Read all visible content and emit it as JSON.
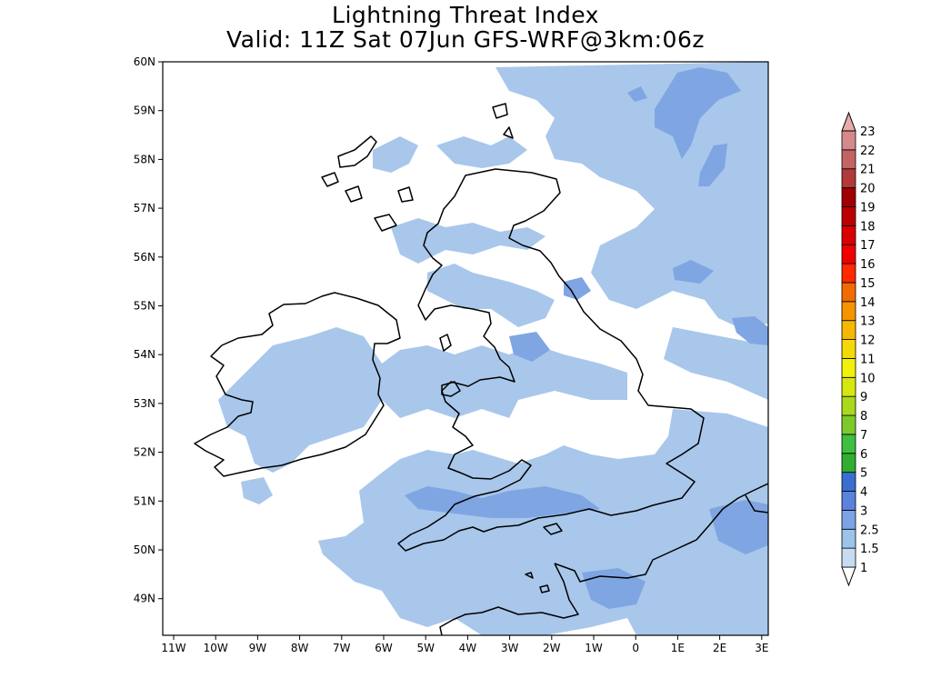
{
  "title": "Lightning Threat Index",
  "subtitle": "Valid: 11Z Sat 07Jun GFS-WRF@3km:06z",
  "map": {
    "lat_labels": [
      "60N",
      "59N",
      "58N",
      "57N",
      "56N",
      "55N",
      "54N",
      "53N",
      "52N",
      "51N",
      "50N",
      "49N"
    ],
    "lon_labels": [
      "11W",
      "10W",
      "9W",
      "8W",
      "7W",
      "6W",
      "5W",
      "4W",
      "3W",
      "2W",
      "1W",
      "0",
      "1E",
      "2E",
      "3E"
    ]
  },
  "colorbar": {
    "levels": [
      "1",
      "1.5",
      "2.5",
      "3",
      "4",
      "5",
      "6",
      "7",
      "8",
      "9",
      "10",
      "11",
      "12",
      "13",
      "14",
      "15",
      "16",
      "17",
      "18",
      "19",
      "20",
      "21",
      "22",
      "23"
    ],
    "colors": [
      "#c7dcf3",
      "#9cc3ea",
      "#7da3e6",
      "#5b82dc",
      "#3a6fd1",
      "#2fae2f",
      "#3fbf3f",
      "#7ec92a",
      "#a9d81c",
      "#d5e80e",
      "#f1f10a",
      "#f4d808",
      "#f5b800",
      "#f59300",
      "#f36a00",
      "#ff2a00",
      "#f00000",
      "#d80000",
      "#bc0000",
      "#a00000",
      "#b23a3a",
      "#c26464",
      "#d48a8a",
      "#e8aaaa"
    ]
  },
  "colors": {
    "light_blue": "#a8c7eb",
    "mid_blue": "#7fa5e3",
    "coast": "#000000"
  }
}
